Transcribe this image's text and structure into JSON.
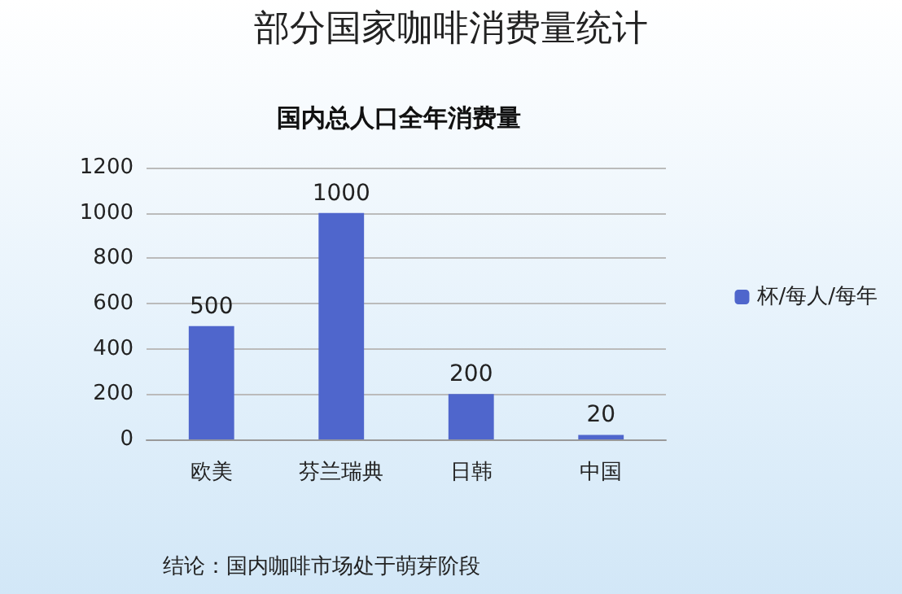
{
  "chart_data": {
    "type": "bar",
    "title": "部分国家咖啡消费量统计",
    "subtitle": "国内总人口全年消费量",
    "categories": [
      "欧美",
      "芬兰瑞典",
      "日韩",
      "中国"
    ],
    "series": [
      {
        "name": "杯/每人/每年",
        "color": "#4f66cc",
        "values": [
          500,
          1000,
          200,
          20
        ]
      }
    ],
    "ylim": [
      0,
      1200
    ],
    "yticks": [
      0,
      200,
      400,
      600,
      800,
      1000,
      1200
    ],
    "grid": "y",
    "legend": "right",
    "data_labels": true,
    "annotations": [
      "结论：国内咖啡市场处于萌芽阶段"
    ]
  }
}
